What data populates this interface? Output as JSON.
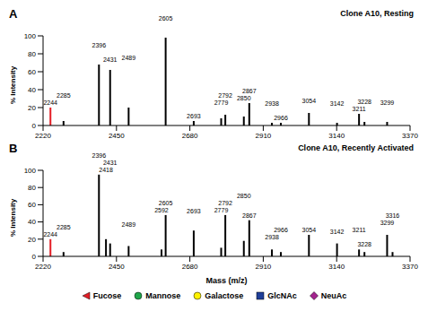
{
  "chart_data": [
    {
      "type": "bar",
      "panel": "A",
      "title": "Clone A10, Resting",
      "y_label": "% Intensity",
      "x": [
        2244,
        2285,
        2396,
        2431,
        2489,
        2605,
        2693,
        2779,
        2792,
        2850,
        2867,
        2938,
        2966,
        3054,
        3142,
        3211,
        3228,
        3299
      ],
      "values": [
        20,
        5,
        68,
        62,
        20,
        98,
        5,
        8,
        12,
        10,
        25,
        3,
        3,
        14,
        3,
        13,
        4,
        4
      ],
      "colors": [
        "#e41e26",
        "#000000",
        "#000000",
        "#000000",
        "#000000",
        "#000000",
        "#000000",
        "#000000",
        "#000000",
        "#000000",
        "#000000",
        "#000000",
        "#000000",
        "#000000",
        "#000000",
        "#000000",
        "#000000",
        "#000000"
      ],
      "xlim": [
        2220,
        3370
      ],
      "xticks": [
        2220,
        2450,
        2680,
        2910,
        3140,
        3370
      ],
      "ylim": [
        0,
        100
      ],
      "yticks": [
        0,
        20,
        40,
        60,
        80,
        100
      ]
    },
    {
      "type": "bar",
      "panel": "B",
      "title": "Clone A10, Recently Activated",
      "x_label": "Mass (m/z)",
      "y_label": "% Intensity",
      "x": [
        2244,
        2285,
        2396,
        2418,
        2431,
        2489,
        2592,
        2605,
        2693,
        2779,
        2792,
        2850,
        2867,
        2938,
        2966,
        3054,
        3142,
        3211,
        3228,
        3299,
        3316
      ],
      "values": [
        20,
        5,
        95,
        20,
        15,
        12,
        8,
        48,
        30,
        10,
        48,
        18,
        42,
        8,
        5,
        25,
        15,
        8,
        5,
        25,
        5
      ],
      "colors": [
        "#e41e26",
        "#000000",
        "#000000",
        "#000000",
        "#000000",
        "#000000",
        "#000000",
        "#000000",
        "#000000",
        "#000000",
        "#000000",
        "#000000",
        "#000000",
        "#000000",
        "#000000",
        "#000000",
        "#000000",
        "#000000",
        "#000000",
        "#000000",
        "#000000"
      ],
      "xlim": [
        2220,
        3370
      ],
      "xticks": [
        2220,
        2450,
        2680,
        2910,
        3140,
        3370
      ],
      "ylim": [
        0,
        100
      ],
      "yticks": [
        0,
        20,
        40,
        60,
        80,
        100
      ]
    }
  ],
  "legend_items": [
    {
      "name": "Fucose",
      "color": "#e41e26",
      "marker": "triangle"
    },
    {
      "name": "Mannose",
      "color": "#1fa64a",
      "marker": "circle"
    },
    {
      "name": "Galactose",
      "color": "#fff200",
      "marker": "circle"
    },
    {
      "name": "GlcNAc",
      "color": "#1f3f99",
      "marker": "square"
    },
    {
      "name": "NeuAc",
      "color": "#a3238e",
      "marker": "diamond"
    }
  ]
}
